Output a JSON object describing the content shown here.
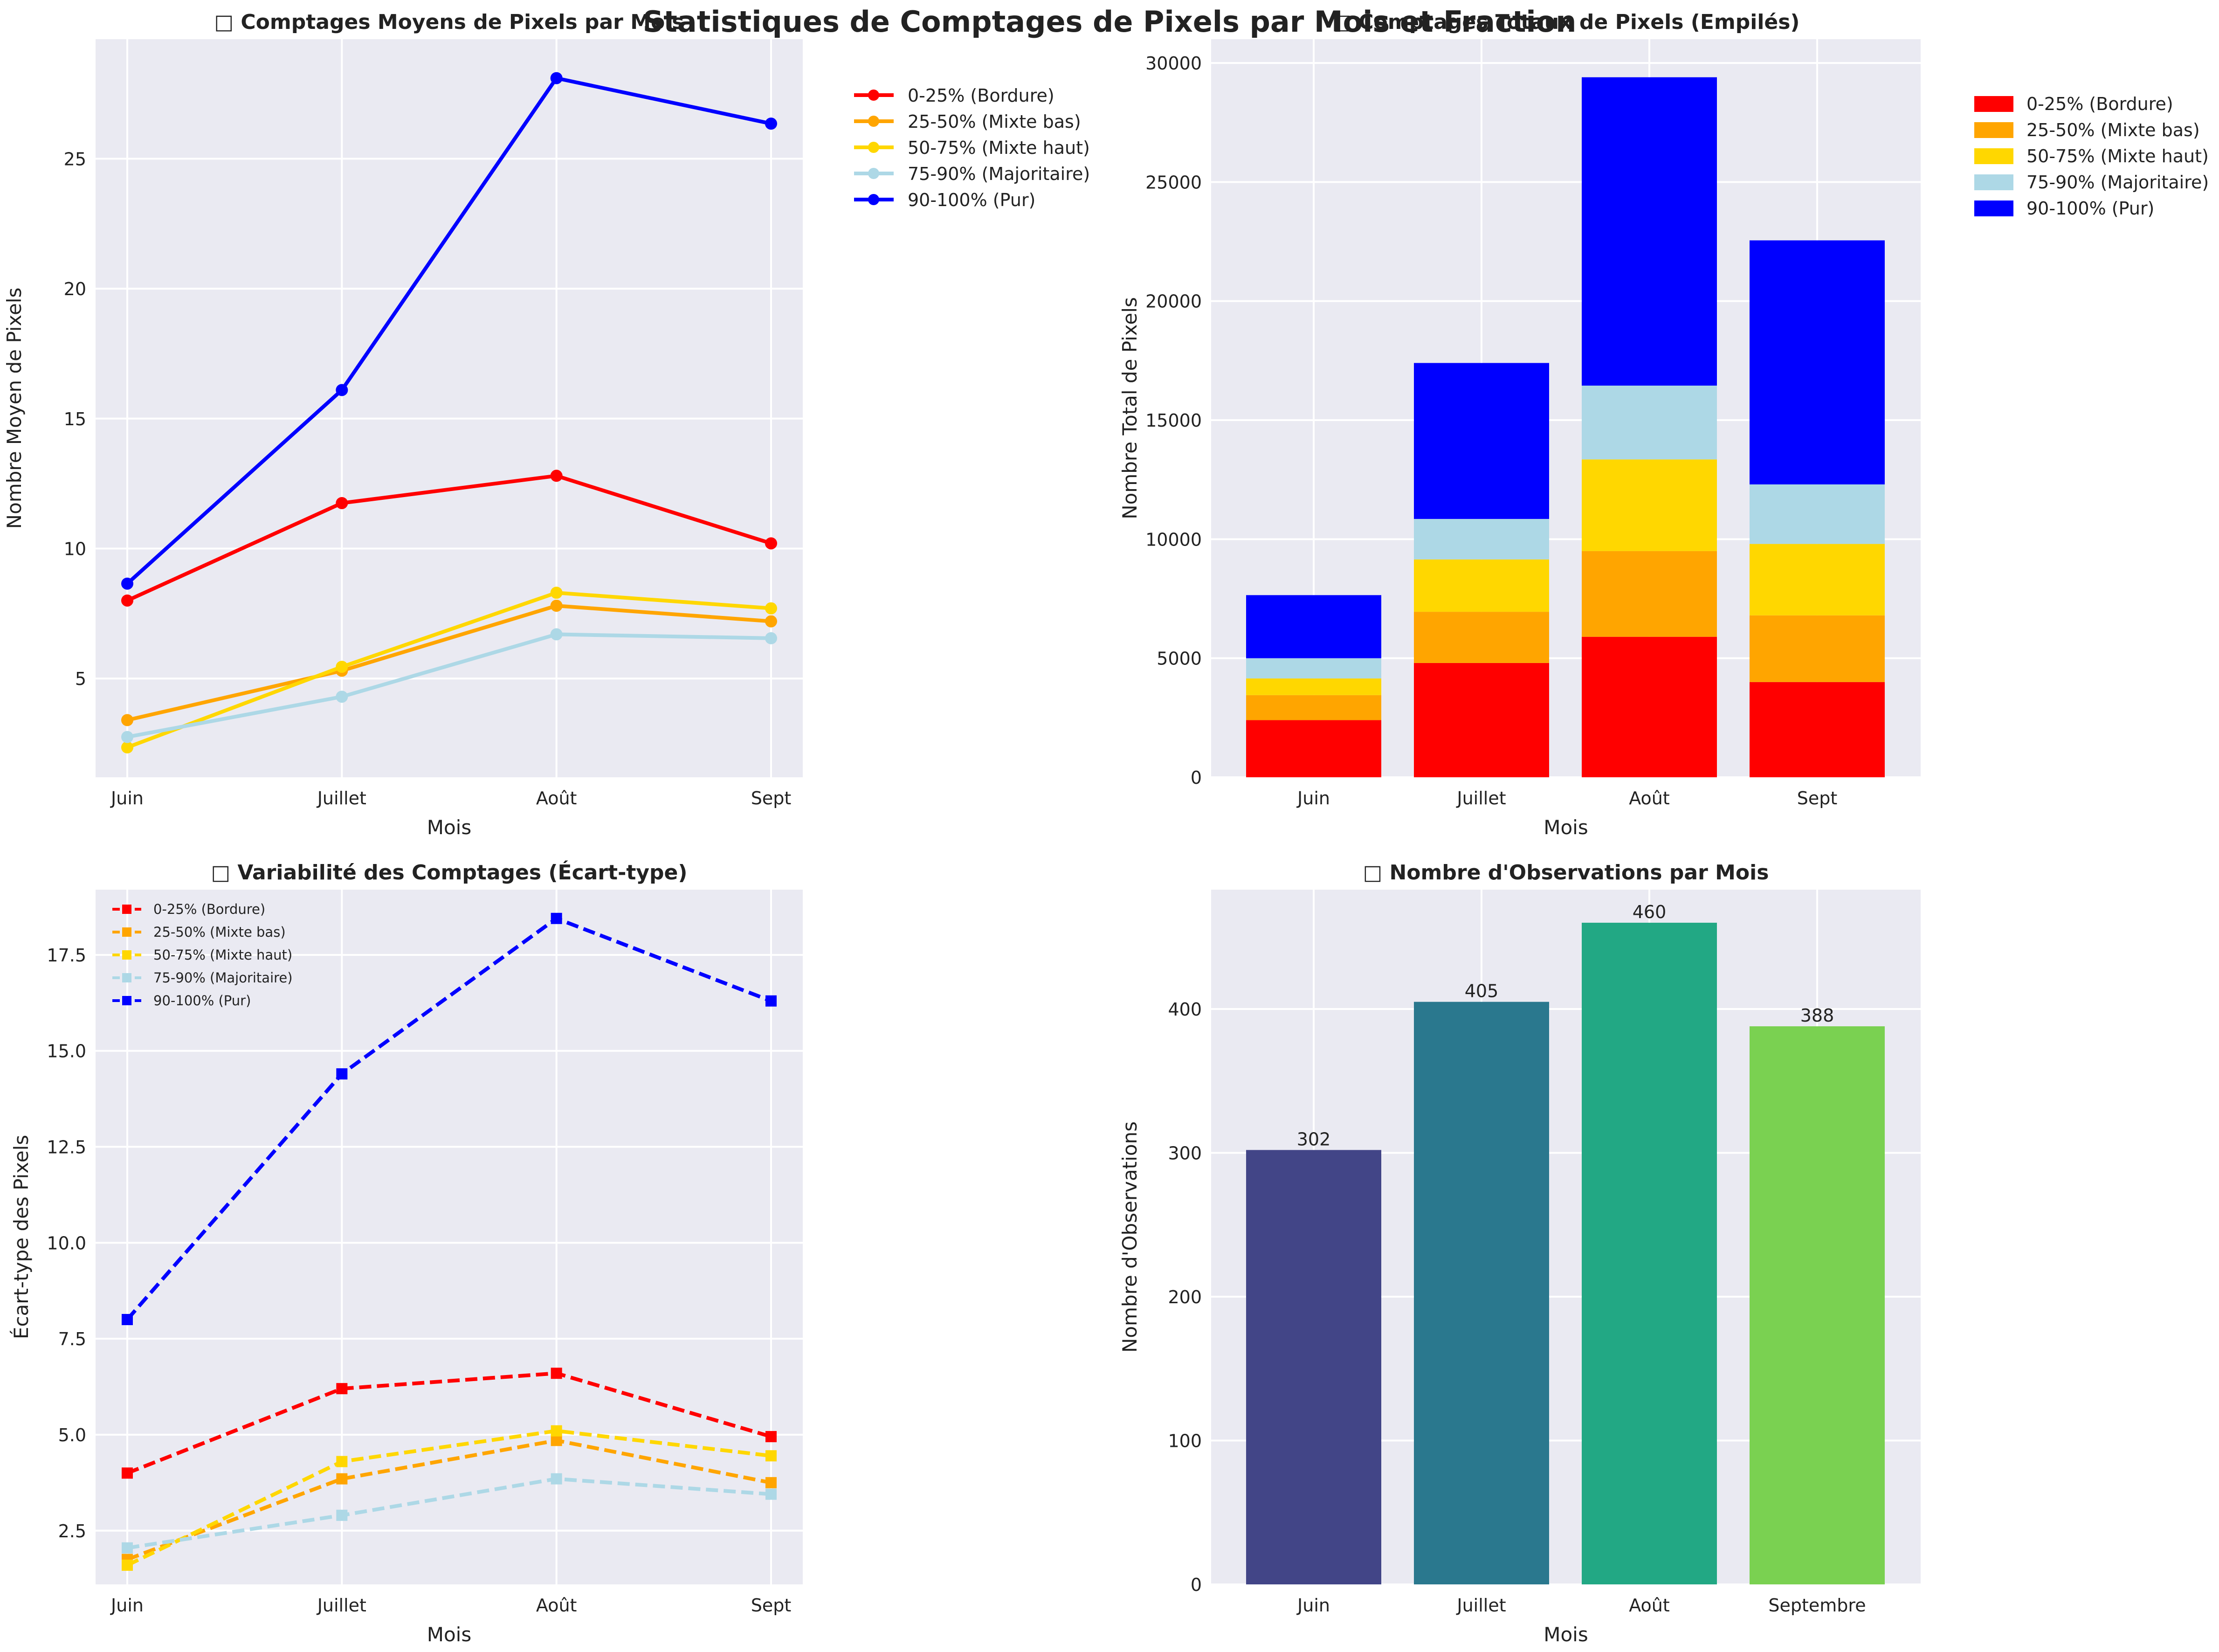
{
  "figure_title": "Statistiques de Comptages de Pixels par Mois et Fraction",
  "colors": {
    "plot_bg": "#eaeaf2",
    "grid": "#ffffff",
    "series": [
      "#ff0000",
      "#ffa500",
      "#ffd700",
      "#add8e6",
      "#0000ff"
    ],
    "obs_bars": [
      "#424587",
      "#2a788e",
      "#22a884",
      "#7ad151"
    ]
  },
  "chart_data": [
    {
      "type": "line",
      "title": "□ Comptages Moyens de Pixels par Mois",
      "xlabel": "Mois",
      "ylabel": "Nombre Moyen de Pixels",
      "categories": [
        "Juin",
        "Juillet",
        "Août",
        "Sept"
      ],
      "ylim": [
        1.2,
        29.6
      ],
      "yticks": [
        "5",
        "10",
        "15",
        "20",
        "25"
      ],
      "marker": "circle",
      "line_style": "solid",
      "legend_position": "outside-right",
      "series": [
        {
          "name": "0-25% (Bordure)",
          "values": [
            8.0,
            11.75,
            12.8,
            10.2
          ]
        },
        {
          "name": "25-50% (Mixte bas)",
          "values": [
            3.4,
            5.3,
            7.8,
            7.2
          ]
        },
        {
          "name": "50-75% (Mixte haut)",
          "values": [
            2.35,
            5.45,
            8.3,
            7.7
          ]
        },
        {
          "name": "75-90% (Majoritaire)",
          "values": [
            2.75,
            4.3,
            6.7,
            6.55
          ]
        },
        {
          "name": "90-100% (Pur)",
          "values": [
            8.65,
            16.1,
            28.1,
            26.35
          ]
        }
      ]
    },
    {
      "type": "bar",
      "stacked": true,
      "title": "□ Comptages Totaux de Pixels (Empilés)",
      "xlabel": "Mois",
      "ylabel": "Nombre Total de Pixels",
      "categories": [
        "Juin",
        "Juillet",
        "Août",
        "Sept"
      ],
      "ylim": [
        0,
        31000
      ],
      "yticks": [
        "0",
        "5000",
        "10000",
        "15000",
        "20000",
        "25000",
        "30000"
      ],
      "legend_position": "outside-right",
      "series": [
        {
          "name": "0-25% (Bordure)",
          "values": [
            2400,
            4800,
            5900,
            4000
          ]
        },
        {
          "name": "25-50% (Mixte bas)",
          "values": [
            1050,
            2150,
            3600,
            2800
          ]
        },
        {
          "name": "50-75% (Mixte haut)",
          "values": [
            700,
            2200,
            3850,
            3000
          ]
        },
        {
          "name": "75-90% (Majoritaire)",
          "values": [
            850,
            1700,
            3100,
            2500
          ]
        },
        {
          "name": "90-100% (Pur)",
          "values": [
            2650,
            6550,
            12950,
            10250
          ]
        }
      ]
    },
    {
      "type": "line",
      "title": "□ Variabilité des Comptages (Écart-type)",
      "xlabel": "Mois",
      "ylabel": "Écart-type des Pixels",
      "categories": [
        "Juin",
        "Juillet",
        "Août",
        "Sept"
      ],
      "ylim": [
        1.1,
        19.2
      ],
      "yticks": [
        "2.5",
        "5.0",
        "7.5",
        "10.0",
        "12.5",
        "15.0",
        "17.5"
      ],
      "marker": "square",
      "line_style": "dashed",
      "legend_position": "top-left",
      "series": [
        {
          "name": "0-25% (Bordure)",
          "values": [
            4.0,
            6.2,
            6.6,
            4.95
          ]
        },
        {
          "name": "25-50% (Mixte bas)",
          "values": [
            1.75,
            3.85,
            4.85,
            3.75
          ]
        },
        {
          "name": "50-75% (Mixte haut)",
          "values": [
            1.6,
            4.3,
            5.1,
            4.45
          ]
        },
        {
          "name": "75-90% (Majoritaire)",
          "values": [
            2.05,
            2.9,
            3.85,
            3.45
          ]
        },
        {
          "name": "90-100% (Pur)",
          "values": [
            8.0,
            14.4,
            18.45,
            16.3
          ]
        }
      ]
    },
    {
      "type": "bar",
      "title": "□ Nombre d'Observations par Mois",
      "xlabel": "Mois",
      "ylabel": "Nombre d'Observations",
      "categories": [
        "Juin",
        "Juillet",
        "Août",
        "Septembre"
      ],
      "values": [
        302,
        405,
        460,
        388
      ],
      "value_labels": [
        "302",
        "405",
        "460",
        "388"
      ],
      "ylim": [
        0,
        483
      ],
      "yticks": [
        "0",
        "100",
        "200",
        "300",
        "400"
      ]
    }
  ]
}
